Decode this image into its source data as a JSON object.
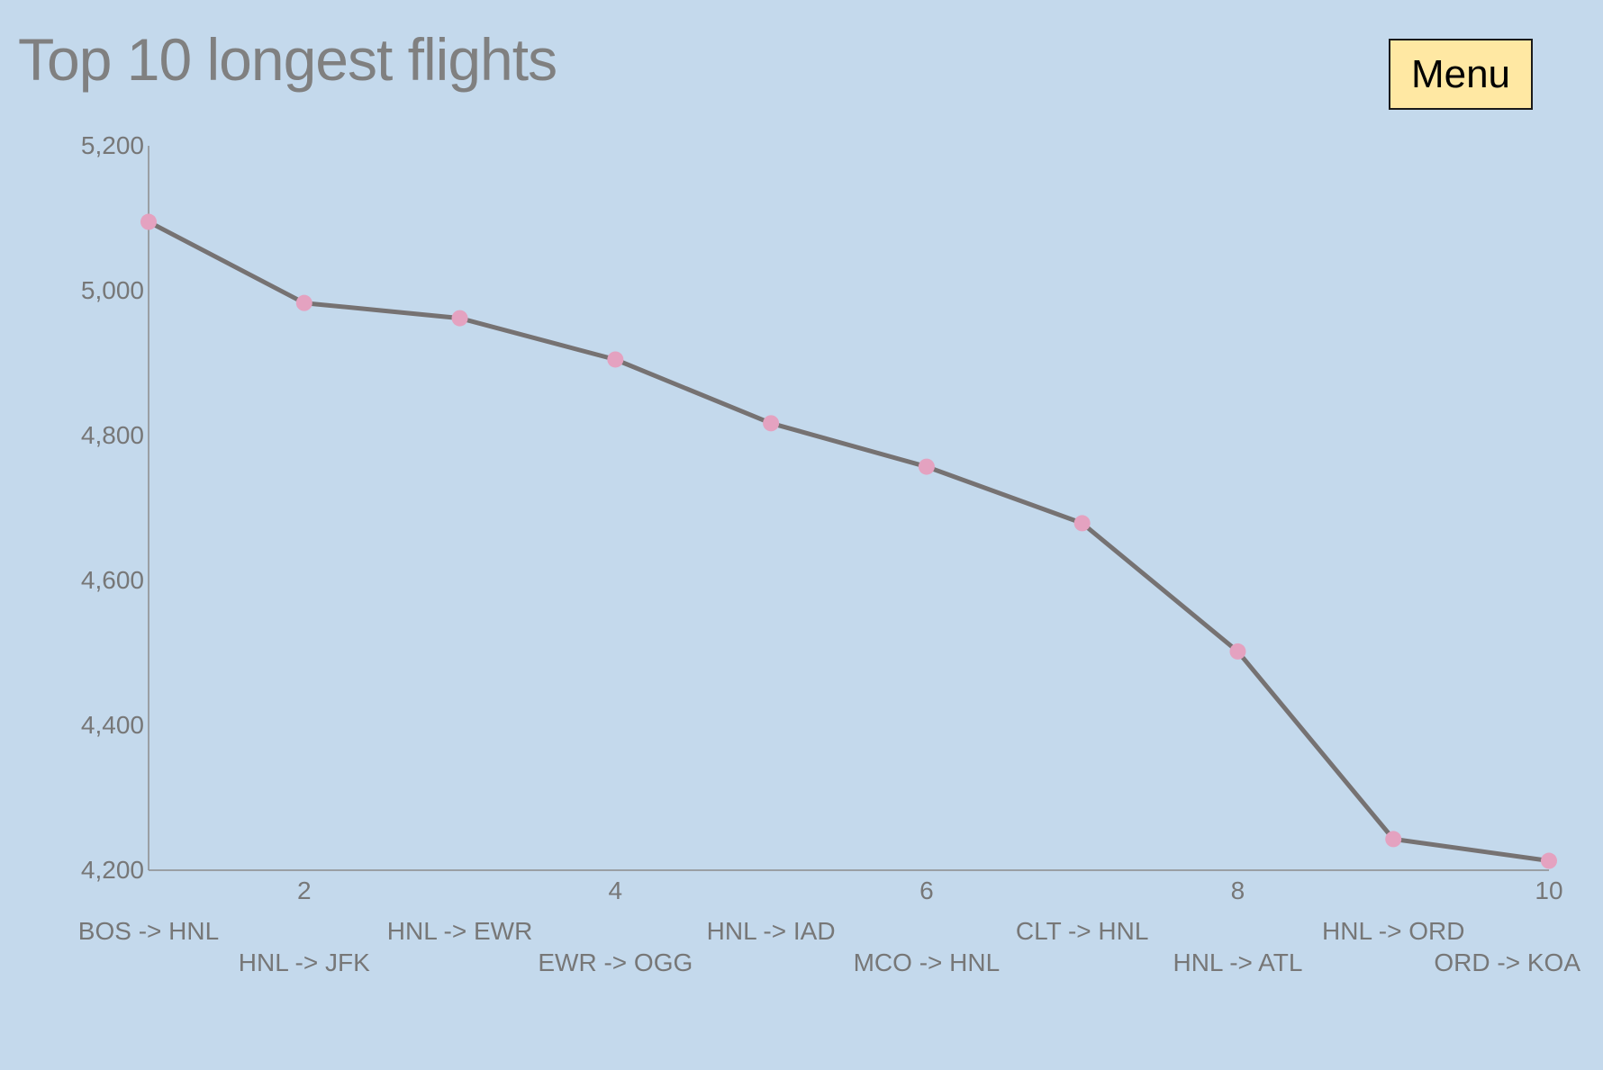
{
  "title": "Top 10 longest flights",
  "menu": {
    "label": "Menu"
  },
  "colors": {
    "background": "#c4d9ec",
    "line": "#767272",
    "marker": "#e4a2c0",
    "axis": "#8c8c8c",
    "text": "#777777",
    "menu_bg": "#ffe8a3"
  },
  "chart_data": {
    "type": "line",
    "title": "Top 10 longest flights",
    "xlabel": "",
    "ylabel": "",
    "x": [
      1,
      2,
      3,
      4,
      5,
      6,
      7,
      8,
      9,
      10
    ],
    "x_ticks": [
      2,
      4,
      6,
      8,
      10
    ],
    "x_tick_labels": [
      "2",
      "4",
      "6",
      "8",
      "10"
    ],
    "y_ticks": [
      4200,
      4400,
      4600,
      4800,
      5000,
      5200
    ],
    "y_tick_labels": [
      "4,200",
      "4,400",
      "4,600",
      "4,800",
      "5,000",
      "5,200"
    ],
    "ylim": [
      4200,
      5200
    ],
    "xlim": [
      1,
      10
    ],
    "grid": false,
    "legend": "none",
    "routes": [
      "BOS -> HNL",
      "HNL -> JFK",
      "HNL -> EWR",
      "EWR -> OGG",
      "HNL -> IAD",
      "MCO -> HNL",
      "CLT -> HNL",
      "HNL -> ATL",
      "HNL -> ORD",
      "ORD -> KOA"
    ],
    "series": [
      {
        "values": [
          5095,
          4983,
          4962,
          4905,
          4817,
          4757,
          4679,
          4502,
          4243,
          4213
        ]
      }
    ]
  }
}
